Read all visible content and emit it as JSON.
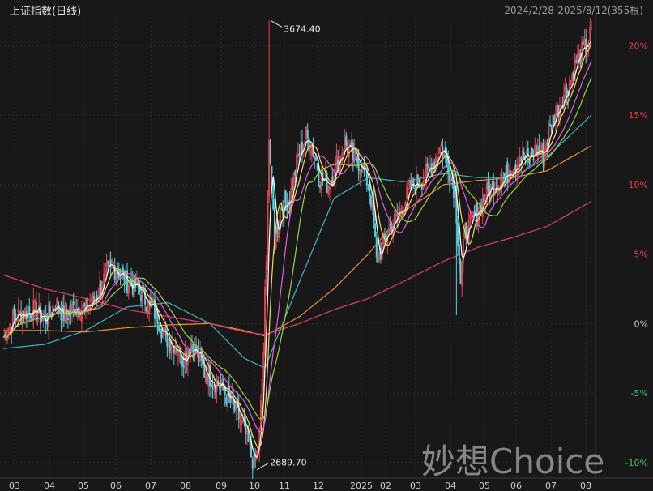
{
  "header": {
    "title": "上证指数(日线)",
    "range": "2024/2/28-2025/8/12(355根)"
  },
  "watermark": "妙想Choice",
  "colors": {
    "background": "#181818",
    "grid": "#2c2c2c",
    "up": "#e8414a",
    "down": "#4fd3e0",
    "ma5": "#ffffff",
    "ma10": "#f5d85a",
    "ma20": "#e060e0",
    "ma30": "#9ad14a",
    "ma60": "#3fb6c8",
    "ma120": "#f0903a",
    "ma250": "#e0406a",
    "pos_label": "#e8414a",
    "neg_label": "#3cc85a",
    "zero_label": "#cfcfcf"
  },
  "chart_data": {
    "type": "candlestick",
    "y_unit": "% change",
    "ylim": [
      -11,
      22
    ],
    "y_ticks": [
      {
        "value": 20,
        "label": "20%"
      },
      {
        "value": 15,
        "label": "15%"
      },
      {
        "value": 10,
        "label": "10%"
      },
      {
        "value": 5,
        "label": "5%"
      },
      {
        "value": 0,
        "label": "0%"
      },
      {
        "value": -5,
        "label": "-5%"
      },
      {
        "value": -10,
        "label": "-10%"
      }
    ],
    "x_ticks": [
      "03",
      "04",
      "05",
      "06",
      "07",
      "08",
      "09",
      "10",
      "11",
      "12",
      "2025",
      "02",
      "03",
      "04",
      "05",
      "06",
      "07",
      "08"
    ],
    "annotations": [
      {
        "label": "3674.40",
        "type": "high"
      },
      {
        "label": "2689.70",
        "type": "low"
      }
    ],
    "close_path": [
      [
        0,
        -1.0
      ],
      [
        8,
        0.5
      ],
      [
        15,
        0.8
      ],
      [
        22,
        1.0
      ],
      [
        30,
        0.2
      ],
      [
        38,
        1.5
      ],
      [
        45,
        0.5
      ],
      [
        52,
        1.2
      ],
      [
        60,
        1.0
      ],
      [
        68,
        2.0
      ],
      [
        75,
        3.6
      ],
      [
        82,
        4.0
      ],
      [
        90,
        3.0
      ],
      [
        98,
        2.5
      ],
      [
        105,
        1.5
      ],
      [
        112,
        0.5
      ],
      [
        118,
        -1.0
      ],
      [
        125,
        -1.5
      ],
      [
        130,
        -2.5
      ],
      [
        136,
        -1.5
      ],
      [
        140,
        -2.0
      ],
      [
        146,
        -3.5
      ],
      [
        152,
        -4.0
      ],
      [
        158,
        -4.5
      ],
      [
        164,
        -5.5
      ],
      [
        170,
        -6.5
      ],
      [
        176,
        -8.0
      ],
      [
        180,
        -9.5
      ],
      [
        183,
        -10.2
      ],
      [
        186,
        -8.0
      ],
      [
        189,
        -2.0
      ],
      [
        191,
        6.0
      ],
      [
        194,
        12.0
      ],
      [
        197,
        6.0
      ],
      [
        202,
        8.5
      ],
      [
        208,
        9.0
      ],
      [
        214,
        12.0
      ],
      [
        220,
        13.5
      ],
      [
        225,
        12.5
      ],
      [
        230,
        10.5
      ],
      [
        236,
        10.0
      ],
      [
        242,
        11.5
      ],
      [
        248,
        13.0
      ],
      [
        254,
        12.0
      ],
      [
        260,
        11.5
      ],
      [
        265,
        10.0
      ],
      [
        268,
        8.5
      ],
      [
        271,
        4.5
      ],
      [
        275,
        5.5
      ],
      [
        280,
        6.8
      ],
      [
        285,
        7.5
      ],
      [
        290,
        8.5
      ],
      [
        296,
        9.8
      ],
      [
        302,
        10.2
      ],
      [
        308,
        10.8
      ],
      [
        313,
        11.8
      ],
      [
        318,
        12.8
      ],
      [
        323,
        11.5
      ],
      [
        328,
        9.5
      ],
      [
        332,
        3.0
      ],
      [
        335,
        6.5
      ],
      [
        340,
        7.2
      ],
      [
        346,
        8.5
      ],
      [
        352,
        9.5
      ],
      [
        358,
        10.2
      ],
      [
        364,
        10.5
      ],
      [
        370,
        11.5
      ],
      [
        376,
        12.0
      ],
      [
        382,
        11.8
      ],
      [
        387,
        12.5
      ],
      [
        392,
        12.2
      ],
      [
        397,
        14.0
      ],
      [
        402,
        15.5
      ],
      [
        407,
        16.5
      ],
      [
        412,
        17.5
      ],
      [
        416,
        19.0
      ],
      [
        420,
        19.5
      ],
      [
        424,
        20.0
      ],
      [
        427,
        21.0
      ]
    ],
    "ma_series": [
      {
        "name": "MA60",
        "key": "ma60",
        "points": [
          [
            0,
            -1.8
          ],
          [
            30,
            -1.5
          ],
          [
            60,
            -0.5
          ],
          [
            90,
            1.2
          ],
          [
            120,
            1.5
          ],
          [
            150,
            0.0
          ],
          [
            175,
            -2.5
          ],
          [
            190,
            -3.2
          ],
          [
            215,
            3.0
          ],
          [
            240,
            9.0
          ],
          [
            265,
            10.5
          ],
          [
            290,
            10.2
          ],
          [
            320,
            10.8
          ],
          [
            345,
            10.5
          ],
          [
            370,
            10.5
          ],
          [
            395,
            12.0
          ],
          [
            427,
            15.0
          ]
        ]
      },
      {
        "name": "MA120",
        "key": "ma120",
        "points": [
          [
            0,
            -0.5
          ],
          [
            30,
            -0.5
          ],
          [
            60,
            -0.6
          ],
          [
            90,
            -0.3
          ],
          [
            120,
            -0.1
          ],
          [
            150,
            0.0
          ],
          [
            175,
            -0.5
          ],
          [
            190,
            -0.9
          ],
          [
            215,
            0.5
          ],
          [
            240,
            2.5
          ],
          [
            265,
            5.0
          ],
          [
            290,
            8.0
          ],
          [
            320,
            10.0
          ],
          [
            345,
            10.3
          ],
          [
            370,
            10.5
          ],
          [
            395,
            11.0
          ],
          [
            427,
            12.8
          ]
        ]
      },
      {
        "name": "MA250",
        "key": "ma250",
        "points": [
          [
            0,
            3.5
          ],
          [
            30,
            2.5
          ],
          [
            60,
            1.8
          ],
          [
            90,
            1.0
          ],
          [
            120,
            0.5
          ],
          [
            150,
            0.0
          ],
          [
            175,
            -0.6
          ],
          [
            190,
            -0.8
          ],
          [
            215,
            0.0
          ],
          [
            240,
            1.0
          ],
          [
            265,
            1.8
          ],
          [
            290,
            3.0
          ],
          [
            320,
            4.5
          ],
          [
            345,
            5.5
          ],
          [
            370,
            6.2
          ],
          [
            395,
            7.0
          ],
          [
            427,
            8.8
          ]
        ]
      }
    ]
  }
}
